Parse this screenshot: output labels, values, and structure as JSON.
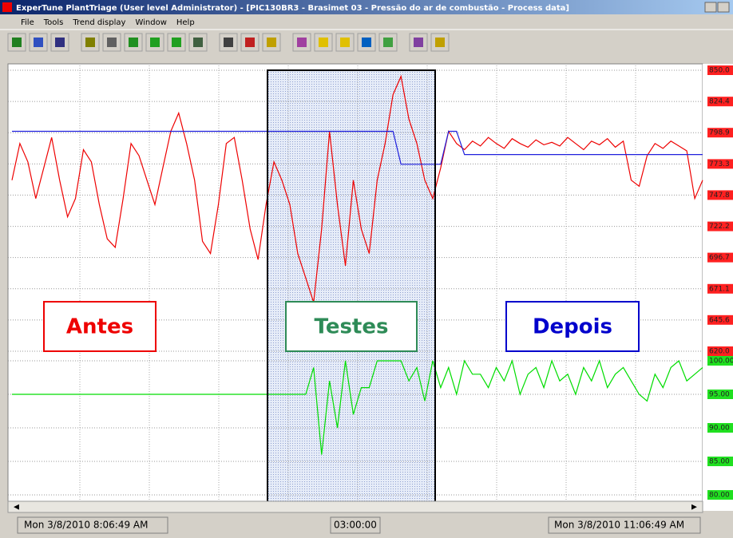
{
  "window": {
    "title": "ExperTune PlantTriage (User level Administrator) - [PIC130BR3 - Brasimet 03 - Pressão do ar de combustão - Process data]",
    "menu": [
      "File",
      "Tools",
      "Trend display",
      "Window",
      "Help"
    ]
  },
  "chart_data": {
    "type": "line",
    "grid": true,
    "ylim": [
      620,
      850
    ],
    "yticks": [
      {
        "value": 850,
        "label": "850.0"
      },
      {
        "value": 824.4,
        "label": "824.4"
      },
      {
        "value": 798.9,
        "label": "798.9"
      },
      {
        "value": 773.3,
        "label": "773.3"
      },
      {
        "value": 747.8,
        "label": "747.8"
      },
      {
        "value": 722.2,
        "label": "722.2"
      },
      {
        "value": 696.7,
        "label": "696.7"
      },
      {
        "value": 671.1,
        "label": "671.1"
      },
      {
        "value": 645.6,
        "label": "645.6"
      },
      {
        "value": 620,
        "label": "620.0"
      }
    ],
    "y2lim": [
      80,
      100
    ],
    "y2ticks": [
      {
        "value": 100,
        "label": "100.00"
      },
      {
        "value": 95,
        "label": "95.00"
      },
      {
        "value": 90,
        "label": "90.00"
      },
      {
        "value": 85,
        "label": "85.00"
      },
      {
        "value": 80,
        "label": "80.00"
      }
    ],
    "series": [
      {
        "color": "#ee0000",
        "values": [
          760,
          790,
          775,
          745,
          770,
          795,
          760,
          730,
          745,
          785,
          775,
          740,
          712,
          705,
          745,
          790,
          780,
          760,
          740,
          770,
          800,
          815,
          790,
          760,
          710,
          700,
          740,
          790,
          795,
          760,
          720,
          695,
          740,
          775,
          760,
          740,
          700,
          680,
          660,
          720,
          800,
          740,
          690,
          760,
          720,
          700,
          760,
          790,
          830,
          845,
          810,
          790,
          760,
          745,
          770,
          800,
          790,
          785,
          792,
          788,
          795,
          790,
          786,
          794,
          790,
          787,
          793,
          789,
          791,
          788,
          795,
          790,
          785,
          792,
          789,
          794,
          787,
          792,
          760,
          755,
          780,
          790,
          786,
          792,
          788,
          784,
          745,
          760
        ]
      },
      {
        "color": "#2020dd",
        "values": [
          800,
          800,
          800,
          800,
          800,
          800,
          800,
          800,
          800,
          800,
          800,
          800,
          800,
          800,
          800,
          800,
          800,
          800,
          800,
          800,
          800,
          800,
          800,
          800,
          800,
          800,
          800,
          800,
          800,
          800,
          800,
          800,
          800,
          800,
          800,
          800,
          800,
          800,
          800,
          800,
          800,
          800,
          800,
          800,
          800,
          800,
          800,
          800,
          800,
          773,
          773,
          773,
          773,
          773,
          773,
          800,
          800,
          781,
          781,
          781,
          781,
          781,
          781,
          781,
          781,
          781,
          781,
          781,
          781,
          781,
          781,
          781,
          781,
          781,
          781,
          781,
          781,
          781,
          781,
          781,
          781,
          781,
          781,
          781,
          781,
          781,
          781,
          781
        ]
      },
      {
        "color": "#00dd00",
        "axis": "y2",
        "values": [
          95,
          95,
          95,
          95,
          95,
          95,
          95,
          95,
          95,
          95,
          95,
          95,
          95,
          95,
          95,
          95,
          95,
          95,
          95,
          95,
          95,
          95,
          95,
          95,
          95,
          95,
          95,
          95,
          95,
          95,
          95,
          95,
          95,
          95,
          95,
          95,
          95,
          95,
          99,
          86,
          97,
          90,
          100,
          92,
          96,
          96,
          100,
          100,
          100,
          100,
          97,
          99,
          94,
          100,
          96,
          99,
          95,
          100,
          98,
          98,
          96,
          99,
          97,
          100,
          95,
          98,
          99,
          96,
          100,
          97,
          98,
          95,
          99,
          97,
          100,
          96,
          98,
          99,
          97,
          95,
          94,
          98,
          96,
          99,
          100,
          97,
          98,
          99
        ]
      }
    ],
    "annotations": [
      {
        "text": "Antes",
        "color": "#ee0000"
      },
      {
        "text": "Testes",
        "color": "#2e8b57"
      },
      {
        "text": "Depois",
        "color": "#0000cc"
      }
    ]
  },
  "status": {
    "start": "Mon 3/8/2010  8:06:49 AM",
    "span": "03:00:00",
    "end": "Mon 3/8/2010  11:06:49 AM"
  }
}
